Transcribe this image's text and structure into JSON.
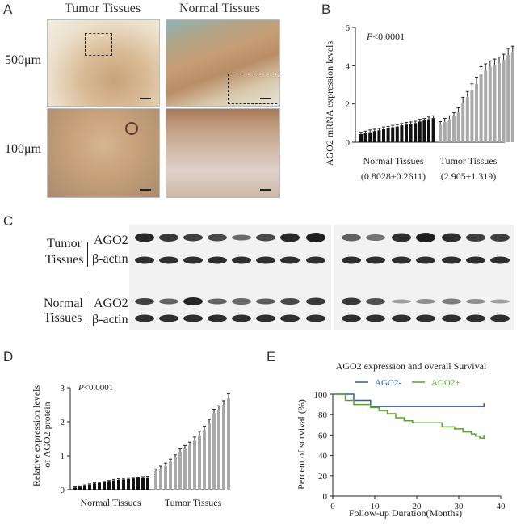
{
  "panelA": {
    "label": "A",
    "col_headers": [
      "Tumor Tissues",
      "Normal Tissues"
    ],
    "row_labels": [
      "500μm",
      "100μm"
    ]
  },
  "panelB": {
    "label": "B",
    "pvalue_prefix": "P",
    "pvalue_rest": "<0.0001",
    "group_labels": [
      "Normal Tissues",
      "Tumor Tissues"
    ],
    "group_stats": [
      "(0.8028±0.2611)",
      "(2.905±1.319)"
    ]
  },
  "panelC": {
    "label": "C",
    "row_groups": [
      {
        "group": [
          "Tumor",
          "Tissues"
        ],
        "lanes": [
          "AGO2",
          "β-actin"
        ]
      },
      {
        "group": [
          "Normal",
          "Tissues"
        ],
        "lanes": [
          "AGO2",
          "β-actin"
        ]
      }
    ]
  },
  "panelD": {
    "label": "D",
    "pvalue_prefix": "P",
    "pvalue_rest": "<0.0001"
  },
  "panelE": {
    "label": "E",
    "legend_items": [
      "AGO2-",
      "AGO2+"
    ]
  },
  "colors": {
    "normal_bar": "#111111",
    "tumor_bar": "#a9a9a9",
    "ago2_neg": "#2e5e9e",
    "ago2_pos": "#5aa02c"
  },
  "chart_data": [
    {
      "type": "bar",
      "panel": "B",
      "ylabel": "AGO2 mRNA expression levels",
      "ylim": [
        0,
        6
      ],
      "yticks": [
        0,
        2,
        4,
        6
      ],
      "xlabel": "",
      "series": [
        {
          "values": [
            0.42,
            0.48,
            0.52,
            0.58,
            0.62,
            0.68,
            0.72,
            0.78,
            0.82,
            0.88,
            0.92,
            0.96,
            1.0,
            1.08,
            1.14,
            1.2,
            1.26
          ]
        },
        {
          "values": [
            0.9,
            1.05,
            1.2,
            1.35,
            1.55,
            2.05,
            2.35,
            2.7,
            3.05,
            3.55,
            3.75,
            3.95,
            4.05,
            4.15,
            4.3,
            4.55,
            4.72
          ]
        }
      ],
      "errors": [
        [
          0.1,
          0.1,
          0.12,
          0.1,
          0.1,
          0.12,
          0.1,
          0.1,
          0.1,
          0.1,
          0.12,
          0.1,
          0.1,
          0.12,
          0.1,
          0.12,
          0.12
        ],
        [
          0.18,
          0.2,
          0.18,
          0.2,
          0.25,
          0.3,
          0.3,
          0.35,
          0.35,
          0.4,
          0.35,
          0.3,
          0.3,
          0.3,
          0.3,
          0.35,
          0.3
        ]
      ]
    },
    {
      "type": "bar",
      "panel": "D",
      "ylabel": "Relative expression levels of AGO2 protein",
      "ylim": [
        0,
        3
      ],
      "yticks": [
        0,
        1,
        2,
        3
      ],
      "xlabel": "",
      "categories_groups": [
        "Normal Tissues",
        "Tumor Tissues"
      ],
      "series": [
        {
          "values": [
            0.06,
            0.09,
            0.12,
            0.15,
            0.18,
            0.2,
            0.22,
            0.25,
            0.27,
            0.29,
            0.3,
            0.32,
            0.33,
            0.34,
            0.35,
            0.36
          ]
        },
        {
          "values": [
            0.55,
            0.62,
            0.7,
            0.82,
            0.95,
            1.1,
            1.2,
            1.3,
            1.45,
            1.6,
            1.75,
            1.95,
            2.25,
            2.35,
            2.5,
            2.7
          ]
        }
      ],
      "errors": [
        [
          0.02,
          0.02,
          0.02,
          0.02,
          0.02,
          0.02,
          0.02,
          0.02,
          0.03,
          0.03,
          0.03,
          0.03,
          0.03,
          0.03,
          0.03,
          0.03
        ],
        [
          0.06,
          0.07,
          0.08,
          0.08,
          0.08,
          0.1,
          0.1,
          0.1,
          0.1,
          0.12,
          0.12,
          0.12,
          0.12,
          0.12,
          0.12,
          0.12
        ]
      ]
    },
    {
      "type": "line",
      "panel": "E",
      "title": "AGO2 expression and overall Survival",
      "xlabel": "Follow-up  Duration(Months)",
      "ylabel": "Percent of survival (%)",
      "xlim": [
        0,
        40
      ],
      "ylim": [
        0,
        100
      ],
      "xticks": [
        0,
        10,
        20,
        30,
        40
      ],
      "yticks": [
        0,
        20,
        40,
        60,
        80,
        100
      ],
      "series": [
        {
          "name": "AGO2-",
          "x": [
            0,
            5,
            5,
            9,
            9,
            36
          ],
          "y": [
            100,
            100,
            94,
            94,
            88,
            88
          ]
        },
        {
          "name": "AGO2+",
          "x": [
            0,
            3,
            3,
            5,
            5,
            9,
            9,
            11,
            11,
            13,
            13,
            15,
            15,
            17,
            17,
            19,
            19,
            26,
            26,
            29,
            29,
            31,
            31,
            33,
            33,
            34,
            34,
            35,
            35,
            36
          ],
          "y": [
            100,
            100,
            94,
            94,
            90,
            90,
            87,
            87,
            84,
            84,
            81,
            81,
            77,
            77,
            74,
            74,
            72,
            72,
            68,
            68,
            66,
            66,
            63,
            63,
            61,
            61,
            59,
            59,
            57,
            57
          ]
        }
      ]
    }
  ]
}
